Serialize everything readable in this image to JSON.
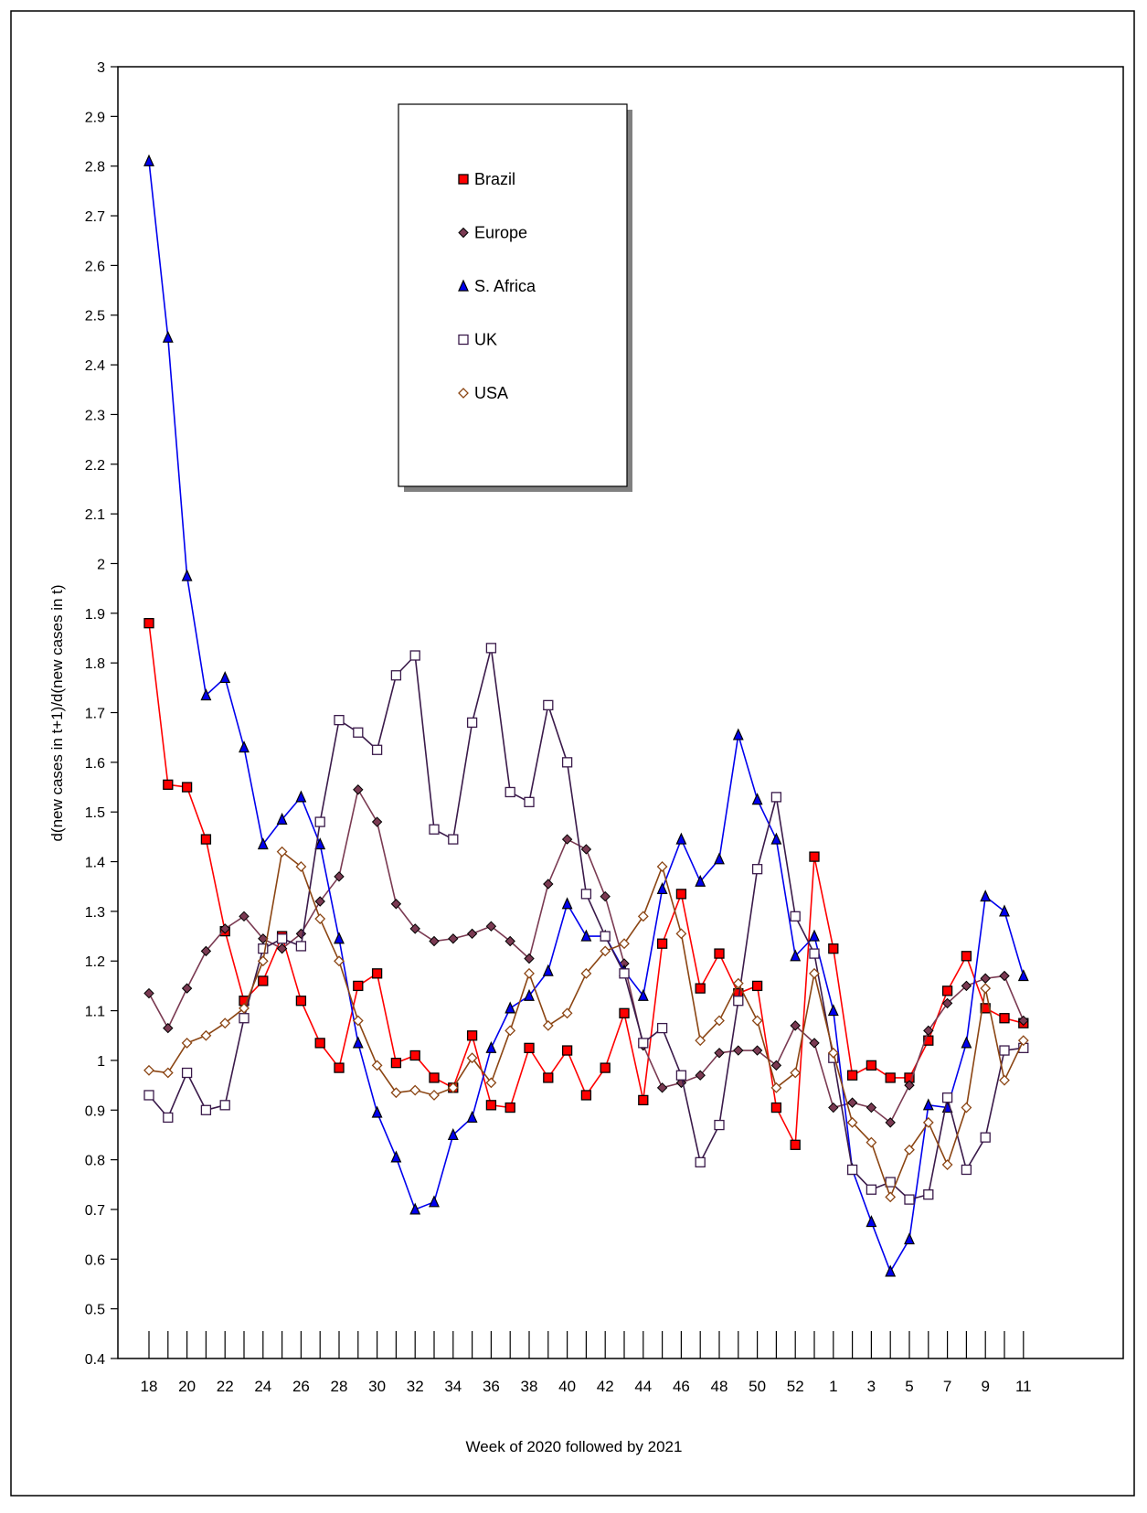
{
  "chart_data": {
    "type": "line",
    "title": "",
    "xlabel": "Week of 2020 followed by 2021",
    "ylabel": "d(new cases in t+1)/d(new cases in t)",
    "ylim": [
      0.4,
      3
    ],
    "yticks": [
      "0.4",
      "0.5",
      "0.6",
      "0.7",
      "0.8",
      "0.9",
      "1",
      "1.1",
      "1.2",
      "1.3",
      "1.4",
      "1.5",
      "1.6",
      "1.7",
      "1.8",
      "1.9",
      "2",
      "2.1",
      "2.2",
      "2.3",
      "2.4",
      "2.5",
      "2.6",
      "2.7",
      "2.8",
      "2.9",
      "3"
    ],
    "categories": [
      "18",
      "19",
      "20",
      "21",
      "22",
      "23",
      "24",
      "25",
      "26",
      "27",
      "28",
      "29",
      "30",
      "31",
      "32",
      "33",
      "34",
      "35",
      "36",
      "37",
      "38",
      "39",
      "40",
      "41",
      "42",
      "43",
      "44",
      "45",
      "46",
      "47",
      "48",
      "49",
      "50",
      "51",
      "52",
      "53",
      "1",
      "2",
      "3",
      "4",
      "5",
      "6",
      "7",
      "8",
      "9",
      "10",
      "11"
    ],
    "x_tick_labels": [
      "18",
      "",
      "20",
      "",
      "22",
      "",
      "24",
      "",
      "26",
      "",
      "28",
      "",
      "30",
      "",
      "32",
      "",
      "34",
      "",
      "36",
      "",
      "38",
      "",
      "40",
      "",
      "42",
      "",
      "44",
      "",
      "46",
      "",
      "48",
      "",
      "50",
      "",
      "52",
      "",
      "1",
      "",
      "3",
      "",
      "5",
      "",
      "7",
      "",
      "9",
      "",
      "11"
    ],
    "grid": false,
    "legend": "upper-center",
    "series": [
      {
        "name": "Brazil",
        "color": "#ff0000",
        "marker": "square-filled",
        "values": [
          1.88,
          1.555,
          1.55,
          1.445,
          1.26,
          1.12,
          1.16,
          1.25,
          1.12,
          1.035,
          0.985,
          1.15,
          1.175,
          0.995,
          1.01,
          0.965,
          0.945,
          1.05,
          0.91,
          0.905,
          1.025,
          0.965,
          1.02,
          0.93,
          0.985,
          1.095,
          0.92,
          1.235,
          1.335,
          1.145,
          1.215,
          1.135,
          1.15,
          0.905,
          0.83,
          1.41,
          1.225,
          0.97,
          0.99,
          0.965,
          0.965,
          1.04,
          1.14,
          1.21,
          1.105,
          1.085,
          1.075
        ]
      },
      {
        "name": "Europe",
        "color": "#7a3a52",
        "marker": "diamond-filled",
        "values": [
          1.135,
          1.065,
          1.145,
          1.22,
          1.265,
          1.29,
          1.245,
          1.225,
          1.255,
          1.32,
          1.37,
          1.545,
          1.48,
          1.315,
          1.265,
          1.24,
          1.245,
          1.255,
          1.27,
          1.24,
          1.205,
          1.355,
          1.445,
          1.425,
          1.33,
          1.195,
          1.03,
          0.945,
          0.955,
          0.97,
          1.015,
          1.02,
          1.02,
          0.99,
          1.07,
          1.035,
          0.905,
          0.915,
          0.905,
          0.875,
          0.95,
          1.06,
          1.115,
          1.15,
          1.165,
          1.17,
          1.08
        ]
      },
      {
        "name": "S. Africa",
        "color": "#0000ee",
        "marker": "triangle-filled",
        "values": [
          2.81,
          2.455,
          1.975,
          1.735,
          1.77,
          1.63,
          1.435,
          1.485,
          1.53,
          1.435,
          1.245,
          1.035,
          0.895,
          0.805,
          0.7,
          0.715,
          0.85,
          0.885,
          1.025,
          1.105,
          1.13,
          1.18,
          1.315,
          1.25,
          1.25,
          1.18,
          1.13,
          1.345,
          1.445,
          1.36,
          1.405,
          1.655,
          1.525,
          1.445,
          1.21,
          1.25,
          1.1,
          0.78,
          0.675,
          0.575,
          0.64,
          0.91,
          0.905,
          1.035,
          1.33,
          1.3,
          1.17
        ]
      },
      {
        "name": "UK",
        "color": "#3a1a4a",
        "marker": "square-open",
        "values": [
          0.93,
          0.885,
          0.975,
          0.9,
          0.91,
          1.085,
          1.225,
          1.245,
          1.23,
          1.48,
          1.685,
          1.66,
          1.625,
          1.775,
          1.815,
          1.465,
          1.445,
          1.68,
          1.83,
          1.54,
          1.52,
          1.715,
          1.6,
          1.335,
          1.25,
          1.175,
          1.035,
          1.065,
          0.97,
          0.795,
          0.87,
          1.12,
          1.385,
          1.53,
          1.29,
          1.215,
          1.005,
          0.78,
          0.74,
          0.755,
          0.72,
          0.73,
          0.925,
          0.78,
          0.845,
          1.02,
          1.025
        ]
      },
      {
        "name": "USA",
        "color": "#8b4513",
        "marker": "diamond-open",
        "values": [
          0.98,
          0.975,
          1.035,
          1.05,
          1.075,
          1.105,
          1.2,
          1.42,
          1.39,
          1.285,
          1.2,
          1.08,
          0.99,
          0.935,
          0.94,
          0.93,
          0.945,
          1.005,
          0.955,
          1.06,
          1.175,
          1.07,
          1.095,
          1.175,
          1.22,
          1.235,
          1.29,
          1.39,
          1.255,
          1.04,
          1.08,
          1.155,
          1.08,
          0.945,
          0.975,
          1.175,
          1.015,
          0.875,
          0.835,
          0.725,
          0.82,
          0.875,
          0.79,
          0.905,
          1.145,
          0.96,
          1.04
        ]
      }
    ]
  }
}
